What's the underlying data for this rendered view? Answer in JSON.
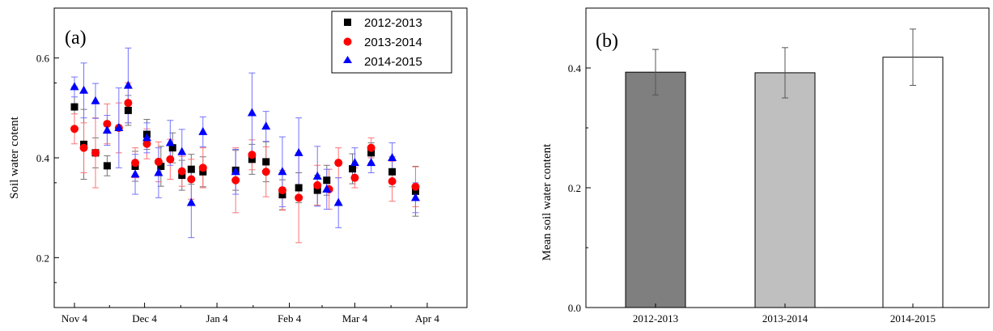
{
  "chart_data": [
    {
      "type": "scatter",
      "panel_label": "(a)",
      "xlabel": "",
      "ylabel": "Soil water cotent",
      "ylim": [
        0.1,
        0.7
      ],
      "yticks": [
        "0.2",
        "0.4",
        "0.6"
      ],
      "xticks": [
        "Nov 4",
        "Dec 4",
        "Jan 4",
        "Feb 4",
        "Mar 4",
        "Apr 4"
      ],
      "legend_position": "top-right",
      "series": [
        {
          "name": "2012-2013",
          "color": "#000000",
          "marker": "square",
          "points": [
            {
              "x": 0,
              "y": 0.502,
              "err": 0.04
            },
            {
              "x": 4,
              "y": 0.427,
              "err": 0.07
            },
            {
              "x": 9,
              "y": 0.41,
              "err": 0.03
            },
            {
              "x": 14,
              "y": 0.384,
              "err": 0.02
            },
            {
              "x": 23,
              "y": 0.495,
              "err": 0.03
            },
            {
              "x": 26,
              "y": 0.383,
              "err": 0.03
            },
            {
              "x": 31,
              "y": 0.447,
              "err": 0.03
            },
            {
              "x": 37,
              "y": 0.383,
              "err": 0.04
            },
            {
              "x": 42,
              "y": 0.42,
              "err": 0.03
            },
            {
              "x": 46,
              "y": 0.365,
              "err": 0.03
            },
            {
              "x": 50,
              "y": 0.377,
              "err": 0.03
            },
            {
              "x": 55,
              "y": 0.372,
              "err": 0.03
            },
            {
              "x": 69,
              "y": 0.375,
              "err": 0.04
            },
            {
              "x": 76,
              "y": 0.397,
              "err": 0.03
            },
            {
              "x": 82,
              "y": 0.392,
              "err": 0.04
            },
            {
              "x": 89,
              "y": 0.326,
              "err": 0.03
            },
            {
              "x": 96,
              "y": 0.34,
              "err": 0.03
            },
            {
              "x": 104,
              "y": 0.335,
              "err": 0.03
            },
            {
              "x": 108,
              "y": 0.355,
              "err": 0.03
            },
            {
              "x": 119,
              "y": 0.378,
              "err": 0.03
            },
            {
              "x": 127,
              "y": 0.41,
              "err": 0.02
            },
            {
              "x": 136,
              "y": 0.372,
              "err": 0.03
            },
            {
              "x": 146,
              "y": 0.333,
              "err": 0.05
            }
          ]
        },
        {
          "name": "2013-2014",
          "color": "#ff0000",
          "marker": "circle",
          "points": [
            {
              "x": 0,
              "y": 0.458,
              "err": 0.03
            },
            {
              "x": 4,
              "y": 0.42,
              "err": 0.05
            },
            {
              "x": 9,
              "y": 0.41,
              "err": 0.07
            },
            {
              "x": 14,
              "y": 0.468,
              "err": 0.04
            },
            {
              "x": 19,
              "y": 0.46,
              "err": 0.05
            },
            {
              "x": 23,
              "y": 0.51,
              "err": 0.04
            },
            {
              "x": 26,
              "y": 0.39,
              "err": 0.03
            },
            {
              "x": 31,
              "y": 0.428,
              "err": 0.03
            },
            {
              "x": 36,
              "y": 0.392,
              "err": 0.04
            },
            {
              "x": 41,
              "y": 0.397,
              "err": 0.04
            },
            {
              "x": 46,
              "y": 0.373,
              "err": 0.03
            },
            {
              "x": 50,
              "y": 0.357,
              "err": 0.04
            },
            {
              "x": 55,
              "y": 0.38,
              "err": 0.04
            },
            {
              "x": 69,
              "y": 0.355,
              "err": 0.065
            },
            {
              "x": 76,
              "y": 0.406,
              "err": 0.03
            },
            {
              "x": 82,
              "y": 0.372,
              "err": 0.05
            },
            {
              "x": 89,
              "y": 0.335,
              "err": 0.04
            },
            {
              "x": 96,
              "y": 0.32,
              "err": 0.09
            },
            {
              "x": 104,
              "y": 0.345,
              "err": 0.04
            },
            {
              "x": 109,
              "y": 0.337,
              "err": 0.04
            },
            {
              "x": 113,
              "y": 0.39,
              "err": 0.03
            },
            {
              "x": 120,
              "y": 0.36,
              "err": 0.02
            },
            {
              "x": 127,
              "y": 0.42,
              "err": 0.02
            },
            {
              "x": 136,
              "y": 0.353,
              "err": 0.04
            },
            {
              "x": 146,
              "y": 0.342,
              "err": 0.04
            }
          ]
        },
        {
          "name": "2014-2015",
          "color": "#0000ff",
          "marker": "triangle",
          "points": [
            {
              "x": 0,
              "y": 0.542,
              "err": 0.02
            },
            {
              "x": 4,
              "y": 0.535,
              "err": 0.055
            },
            {
              "x": 9,
              "y": 0.514,
              "err": 0.035
            },
            {
              "x": 14,
              "y": 0.455,
              "err": 0.03
            },
            {
              "x": 19,
              "y": 0.46,
              "err": 0.08
            },
            {
              "x": 23,
              "y": 0.545,
              "err": 0.075
            },
            {
              "x": 26,
              "y": 0.367,
              "err": 0.04
            },
            {
              "x": 31,
              "y": 0.44,
              "err": 0.03
            },
            {
              "x": 36,
              "y": 0.37,
              "err": 0.05
            },
            {
              "x": 41,
              "y": 0.43,
              "err": 0.045
            },
            {
              "x": 46,
              "y": 0.412,
              "err": 0.045
            },
            {
              "x": 50,
              "y": 0.31,
              "err": 0.07
            },
            {
              "x": 55,
              "y": 0.452,
              "err": 0.03
            },
            {
              "x": 69,
              "y": 0.372,
              "err": 0.045
            },
            {
              "x": 76,
              "y": 0.49,
              "err": 0.08
            },
            {
              "x": 82,
              "y": 0.463,
              "err": 0.03
            },
            {
              "x": 89,
              "y": 0.372,
              "err": 0.07
            },
            {
              "x": 96,
              "y": 0.41,
              "err": 0.07
            },
            {
              "x": 104,
              "y": 0.363,
              "err": 0.06
            },
            {
              "x": 108,
              "y": 0.337,
              "err": 0.04
            },
            {
              "x": 113,
              "y": 0.31,
              "err": 0.05
            },
            {
              "x": 120,
              "y": 0.39,
              "err": 0.03
            },
            {
              "x": 127,
              "y": 0.39,
              "err": 0.02
            },
            {
              "x": 136,
              "y": 0.4,
              "err": 0.03
            },
            {
              "x": 146,
              "y": 0.32,
              "err": 0.03
            }
          ]
        }
      ]
    },
    {
      "type": "bar",
      "panel_label": "(b)",
      "xlabel": "",
      "ylabel": "Mean soil water content",
      "ylim": [
        0.0,
        0.5
      ],
      "yticks": [
        "0.0",
        "0.2",
        "0.4"
      ],
      "categories": [
        "2012-2013",
        "2013-2014",
        "2014-2015"
      ],
      "values": [
        0.393,
        0.392,
        0.418
      ],
      "errors": [
        0.038,
        0.042,
        0.047
      ],
      "colors": [
        "#7f7f7f",
        "#bfbfbf",
        "#ffffff"
      ]
    }
  ]
}
